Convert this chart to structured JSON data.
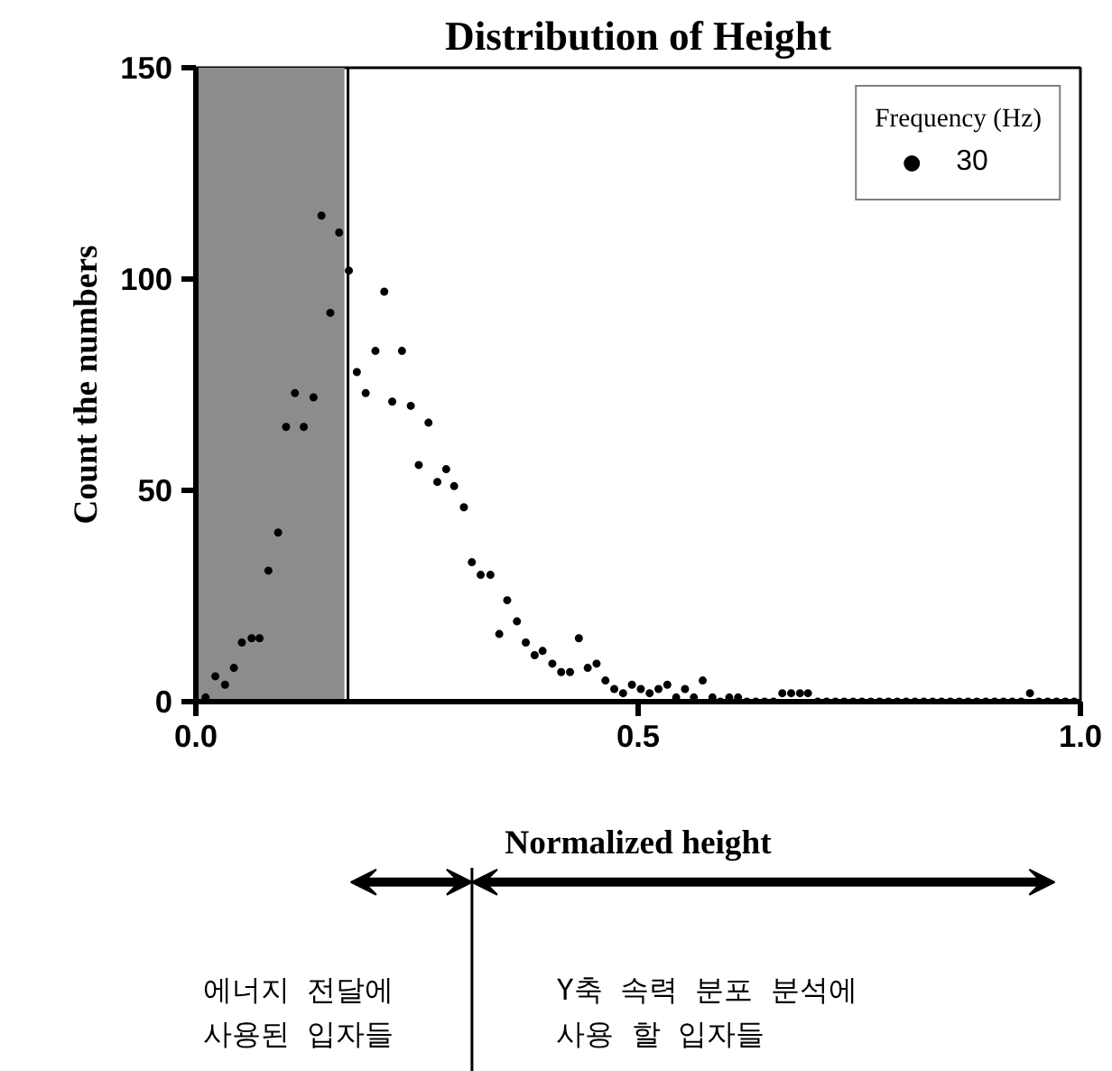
{
  "chart_data": {
    "type": "scatter",
    "title": "Distribution of Height",
    "xlabel": "Normalized height",
    "ylabel": "Count the numbers",
    "legend_title": "Frequency (Hz)",
    "xlim": [
      0,
      1
    ],
    "ylim": [
      0,
      150
    ],
    "xticks": [
      {
        "value": 0,
        "label": "0.0"
      },
      {
        "value": 0.5,
        "label": "0.5"
      },
      {
        "value": 1,
        "label": "1.0"
      }
    ],
    "yticks": [
      0,
      50,
      100,
      150
    ],
    "grid": false,
    "legend": "top right",
    "marker": "circle",
    "bands": [
      {
        "axis": "x",
        "from": 0,
        "to": 0.168,
        "color": "#8c8c8c"
      }
    ],
    "ref_lines": [
      {
        "axis": "x",
        "value": 0.172,
        "color": "#000000"
      }
    ],
    "annotations": [
      "에너지 전달에\n사용된 입자들",
      "Y축 속력 분포 분석에\n사용 할 입자들"
    ],
    "series": [
      {
        "name": "30",
        "color": "#000000",
        "x": [
          0.011,
          0.022,
          0.033,
          0.043,
          0.052,
          0.063,
          0.072,
          0.082,
          0.093,
          0.102,
          0.112,
          0.122,
          0.133,
          0.142,
          0.152,
          0.162,
          0.173,
          0.182,
          0.192,
          0.203,
          0.213,
          0.222,
          0.233,
          0.243,
          0.252,
          0.263,
          0.273,
          0.283,
          0.292,
          0.303,
          0.312,
          0.322,
          0.333,
          0.343,
          0.352,
          0.363,
          0.373,
          0.383,
          0.392,
          0.403,
          0.413,
          0.423,
          0.433,
          0.443,
          0.453,
          0.463,
          0.473,
          0.483,
          0.493,
          0.503,
          0.513,
          0.523,
          0.533,
          0.543,
          0.553,
          0.563,
          0.573,
          0.584,
          0.593,
          0.603,
          0.613,
          0.623,
          0.633,
          0.643,
          0.653,
          0.663,
          0.673,
          0.683,
          0.692,
          0.703,
          0.713,
          0.723,
          0.733,
          0.743,
          0.753,
          0.763,
          0.773,
          0.783,
          0.793,
          0.803,
          0.813,
          0.823,
          0.833,
          0.843,
          0.853,
          0.863,
          0.873,
          0.883,
          0.893,
          0.903,
          0.913,
          0.923,
          0.933,
          0.943,
          0.953,
          0.963,
          0.973,
          0.983,
          0.993
        ],
        "values": [
          1,
          6,
          4,
          8,
          14,
          15,
          15,
          31,
          40,
          65,
          73,
          65,
          72,
          115,
          92,
          111,
          102,
          78,
          73,
          83,
          97,
          71,
          83,
          70,
          56,
          66,
          52,
          55,
          51,
          46,
          33,
          30,
          30,
          16,
          24,
          19,
          14,
          11,
          12,
          9,
          7,
          7,
          15,
          8,
          9,
          5,
          3,
          2,
          4,
          3,
          2,
          3,
          4,
          1,
          3,
          1,
          5,
          1,
          0,
          1,
          1,
          0,
          0,
          0,
          0,
          2,
          2,
          2,
          2,
          0,
          0,
          0,
          0,
          0,
          0,
          0,
          0,
          0,
          0,
          0,
          0,
          0,
          0,
          0,
          0,
          0,
          0,
          0,
          0,
          0,
          0,
          0,
          0,
          2,
          0,
          0,
          0,
          0,
          0
        ]
      }
    ]
  }
}
